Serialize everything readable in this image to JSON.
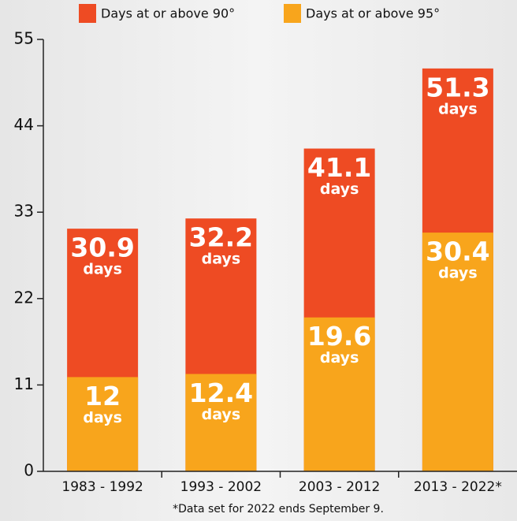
{
  "chart_data": {
    "type": "bar",
    "categories": [
      "1983 - 1992",
      "1993 - 2002",
      "2003 - 2012",
      "2013 - 2022*"
    ],
    "series": [
      {
        "name": "Days at or above 90°",
        "color": "#ee4b23",
        "values": [
          30.9,
          32.2,
          41.1,
          51.3
        ]
      },
      {
        "name": "Days at or above 95°",
        "color": "#f8a51c",
        "values": [
          12,
          12.4,
          19.6,
          30.4
        ]
      }
    ],
    "value_unit": "days",
    "ylim": [
      0,
      55
    ],
    "yticks": [
      0,
      11,
      22,
      33,
      44,
      55
    ],
    "grid": false,
    "note": "*Data set for 2022 ends September 9."
  }
}
